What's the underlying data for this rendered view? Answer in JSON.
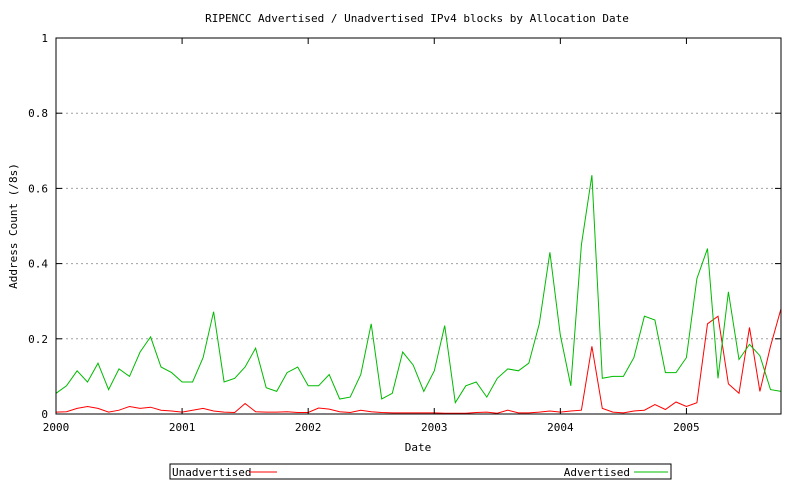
{
  "chart_data": {
    "type": "line",
    "title": "RIPENCC Advertised / Unadvertised IPv4 blocks by Allocation Date",
    "xlabel": "Date",
    "ylabel": "Address Count (/8s)",
    "xlim": [
      2000.0,
      2005.75
    ],
    "ylim": [
      0,
      1
    ],
    "x_ticks": [
      {
        "value": 2000,
        "label": "2000"
      },
      {
        "value": 2001,
        "label": "2001"
      },
      {
        "value": 2002,
        "label": "2002"
      },
      {
        "value": 2003,
        "label": "2003"
      },
      {
        "value": 2004,
        "label": "2004"
      },
      {
        "value": 2005,
        "label": "2005"
      }
    ],
    "y_ticks": [
      {
        "value": 0,
        "label": "0"
      },
      {
        "value": 0.2,
        "label": "0.2"
      },
      {
        "value": 0.4,
        "label": "0.4"
      },
      {
        "value": 0.6,
        "label": "0.6"
      },
      {
        "value": 0.8,
        "label": "0.8"
      },
      {
        "value": 1,
        "label": "1"
      }
    ],
    "grid": "horizontal dotted",
    "legend_position": "bottom",
    "series": [
      {
        "name": "Unadvertised",
        "color": "#ff0000",
        "x": [
          2000.0,
          2000.083,
          2000.167,
          2000.25,
          2000.333,
          2000.417,
          2000.5,
          2000.583,
          2000.667,
          2000.75,
          2000.833,
          2000.917,
          2001.0,
          2001.083,
          2001.167,
          2001.25,
          2001.333,
          2001.417,
          2001.5,
          2001.583,
          2001.667,
          2001.75,
          2001.833,
          2001.917,
          2002.0,
          2002.083,
          2002.167,
          2002.25,
          2002.333,
          2002.417,
          2002.5,
          2002.583,
          2002.667,
          2002.75,
          2002.833,
          2002.917,
          2003.0,
          2003.083,
          2003.167,
          2003.25,
          2003.333,
          2003.417,
          2003.5,
          2003.583,
          2003.667,
          2003.75,
          2003.833,
          2003.917,
          2004.0,
          2004.083,
          2004.167,
          2004.25,
          2004.333,
          2004.417,
          2004.5,
          2004.583,
          2004.667,
          2004.75,
          2004.833,
          2004.917,
          2005.0,
          2005.083,
          2005.167,
          2005.25,
          2005.333,
          2005.417,
          2005.5,
          2005.583,
          2005.667,
          2005.75
        ],
        "y": [
          0.005,
          0.006,
          0.015,
          0.02,
          0.015,
          0.005,
          0.01,
          0.02,
          0.015,
          0.018,
          0.01,
          0.008,
          0.005,
          0.01,
          0.015,
          0.008,
          0.005,
          0.004,
          0.028,
          0.006,
          0.005,
          0.005,
          0.006,
          0.004,
          0.004,
          0.016,
          0.013,
          0.006,
          0.004,
          0.01,
          0.006,
          0.004,
          0.003,
          0.003,
          0.003,
          0.003,
          0.003,
          0.002,
          0.002,
          0.002,
          0.004,
          0.005,
          0.002,
          0.01,
          0.003,
          0.003,
          0.005,
          0.008,
          0.005,
          0.008,
          0.01,
          0.18,
          0.015,
          0.005,
          0.003,
          0.008,
          0.01,
          0.025,
          0.012,
          0.032,
          0.02,
          0.03,
          0.24,
          0.26,
          0.08,
          0.055,
          0.23,
          0.06,
          0.18,
          0.28
        ]
      },
      {
        "name": "Advertised",
        "color": "#00bb00",
        "x": [
          2000.0,
          2000.083,
          2000.167,
          2000.25,
          2000.333,
          2000.417,
          2000.5,
          2000.583,
          2000.667,
          2000.75,
          2000.833,
          2000.917,
          2001.0,
          2001.083,
          2001.167,
          2001.25,
          2001.333,
          2001.417,
          2001.5,
          2001.583,
          2001.667,
          2001.75,
          2001.833,
          2001.917,
          2002.0,
          2002.083,
          2002.167,
          2002.25,
          2002.333,
          2002.417,
          2002.5,
          2002.583,
          2002.667,
          2002.75,
          2002.833,
          2002.917,
          2003.0,
          2003.083,
          2003.167,
          2003.25,
          2003.333,
          2003.417,
          2003.5,
          2003.583,
          2003.667,
          2003.75,
          2003.833,
          2003.917,
          2004.0,
          2004.083,
          2004.167,
          2004.25,
          2004.333,
          2004.417,
          2004.5,
          2004.583,
          2004.667,
          2004.75,
          2004.833,
          2004.917,
          2005.0,
          2005.083,
          2005.167,
          2005.25,
          2005.333,
          2005.417,
          2005.5,
          2005.583,
          2005.667,
          2005.75
        ],
        "y": [
          0.055,
          0.075,
          0.115,
          0.085,
          0.135,
          0.065,
          0.12,
          0.1,
          0.165,
          0.205,
          0.125,
          0.11,
          0.085,
          0.085,
          0.15,
          0.272,
          0.085,
          0.095,
          0.125,
          0.175,
          0.07,
          0.06,
          0.11,
          0.125,
          0.075,
          0.075,
          0.105,
          0.04,
          0.045,
          0.105,
          0.24,
          0.04,
          0.055,
          0.165,
          0.13,
          0.06,
          0.115,
          0.235,
          0.03,
          0.075,
          0.085,
          0.045,
          0.095,
          0.12,
          0.115,
          0.135,
          0.24,
          0.43,
          0.21,
          0.075,
          0.45,
          0.635,
          0.095,
          0.1,
          0.1,
          0.15,
          0.26,
          0.25,
          0.11,
          0.11,
          0.15,
          0.36,
          0.44,
          0.095,
          0.325,
          0.145,
          0.185,
          0.155,
          0.065,
          0.06
        ]
      }
    ]
  }
}
